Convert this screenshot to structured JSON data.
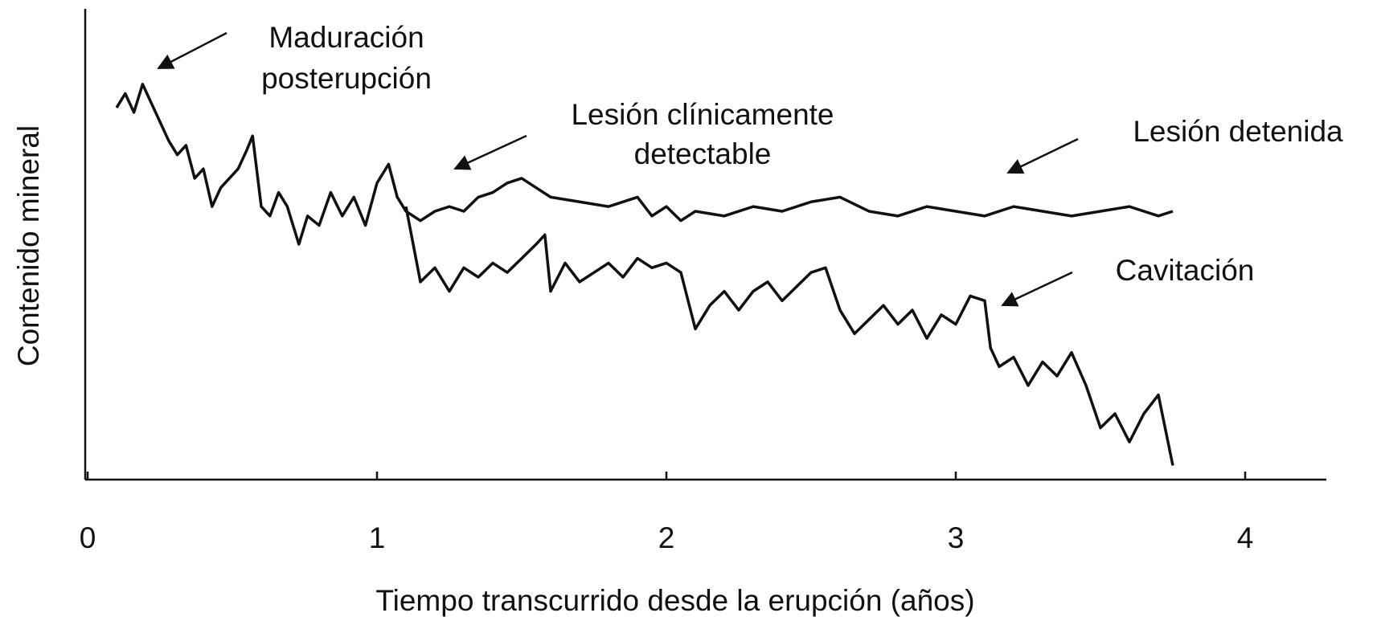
{
  "chart_data": {
    "type": "line",
    "xlabel": "Tiempo transcurrido desde la erupción (años)",
    "ylabel": "Contenido mineral",
    "xlim": [
      0,
      4.3
    ],
    "xticks": [
      0,
      1,
      2,
      3,
      4
    ],
    "ylim": [
      0,
      100
    ],
    "series": [
      {
        "color": "#111111",
        "x": [
          0.1,
          0.13,
          0.16,
          0.19,
          0.22,
          0.25,
          0.28,
          0.31,
          0.34,
          0.37,
          0.4,
          0.43,
          0.46,
          0.49,
          0.52,
          0.55,
          0.57,
          0.6,
          0.63,
          0.66,
          0.69,
          0.73,
          0.76,
          0.8,
          0.84,
          0.88,
          0.92,
          0.96,
          1.0,
          1.04,
          1.07,
          1.1,
          1.15,
          1.2,
          1.25,
          1.3,
          1.35,
          1.4,
          1.45,
          1.5,
          1.55,
          1.6,
          1.7,
          1.8,
          1.9,
          1.95,
          2.0,
          2.05,
          2.1,
          2.2,
          2.3,
          2.4,
          2.5,
          2.6,
          2.7,
          2.8,
          2.9,
          3.0,
          3.1,
          3.2,
          3.3,
          3.4,
          3.5,
          3.6,
          3.7,
          3.75
        ],
        "values": [
          79,
          82,
          78,
          84,
          80,
          76,
          72,
          69,
          71,
          64,
          66,
          58,
          62,
          64,
          66,
          70,
          73,
          58,
          56,
          61,
          58,
          50,
          56,
          54,
          61,
          56,
          60,
          54,
          63,
          67,
          60,
          57,
          55,
          57,
          58,
          57,
          60,
          61,
          63,
          64,
          62,
          60,
          59,
          58,
          60,
          56,
          58,
          55,
          57,
          56,
          58,
          57,
          59,
          60,
          57,
          56,
          58,
          57,
          56,
          58,
          57,
          56,
          57,
          58,
          56,
          57
        ]
      },
      {
        "color": "#111111",
        "x": [
          1.1,
          1.15,
          1.2,
          1.25,
          1.3,
          1.35,
          1.4,
          1.45,
          1.5,
          1.55,
          1.58,
          1.6,
          1.65,
          1.7,
          1.75,
          1.8,
          1.85,
          1.9,
          1.95,
          2.0,
          2.05,
          2.1,
          2.15,
          2.2,
          2.25,
          2.3,
          2.35,
          2.4,
          2.45,
          2.5,
          2.55,
          2.6,
          2.65,
          2.7,
          2.75,
          2.8,
          2.85,
          2.9,
          2.95,
          3.0,
          3.05,
          3.1,
          3.12,
          3.15,
          3.2,
          3.25,
          3.3,
          3.35,
          3.4,
          3.45,
          3.5,
          3.55,
          3.6,
          3.65,
          3.7,
          3.75
        ],
        "values": [
          58,
          42,
          45,
          40,
          45,
          43,
          46,
          44,
          47,
          50,
          52,
          40,
          46,
          42,
          44,
          46,
          43,
          47,
          45,
          46,
          44,
          32,
          37,
          40,
          36,
          40,
          42,
          38,
          41,
          44,
          45,
          36,
          31,
          34,
          37,
          33,
          36,
          30,
          35,
          33,
          39,
          38,
          28,
          24,
          26,
          20,
          25,
          22,
          27,
          20,
          11,
          14,
          8,
          14,
          18,
          3
        ]
      }
    ],
    "annotations": [
      {
        "lines": [
          "Maduración",
          "posterupción"
        ]
      },
      {
        "lines": [
          "Lesión clínicamente",
          "detectable"
        ]
      },
      {
        "lines": [
          "Lesión detenida"
        ]
      },
      {
        "lines": [
          "Cavitación"
        ]
      }
    ]
  }
}
